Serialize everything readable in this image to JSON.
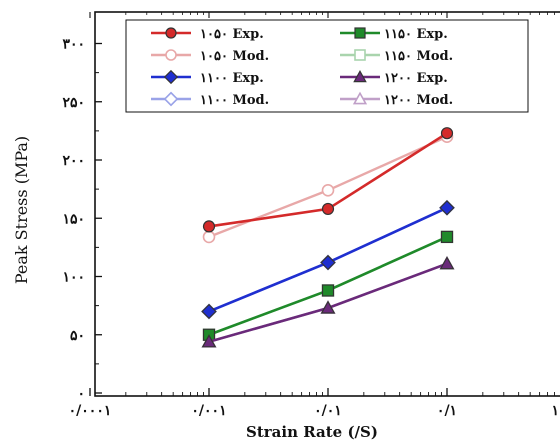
{
  "chart_data": {
    "type": "line",
    "xlabel": "Strain Rate (/S)",
    "ylabel": "Peak Stress (MPa)",
    "x_scale": "log",
    "x_ticks": [
      {
        "value": 0.0001,
        "label": "۰/۰۰۰۱"
      },
      {
        "value": 0.001,
        "label": "۰/۰۰۱"
      },
      {
        "value": 0.01,
        "label": "۰/۰۱"
      },
      {
        "value": 0.1,
        "label": "۰/۱"
      },
      {
        "value": 1,
        "label": "۱"
      }
    ],
    "y_ticks": [
      {
        "value": 0,
        "label": "۰"
      },
      {
        "value": 50,
        "label": "۵۰"
      },
      {
        "value": 100,
        "label": "۱۰۰"
      },
      {
        "value": 150,
        "label": "۱۵۰"
      },
      {
        "value": 200,
        "label": "۲۰۰"
      },
      {
        "value": 250,
        "label": "۲۵۰"
      },
      {
        "value": 300,
        "label": "۳۰۰"
      }
    ],
    "xlim": [
      0.0001,
      1
    ],
    "ylim": [
      0,
      325
    ],
    "x": [
      0.001,
      0.01,
      0.1
    ],
    "grid": false,
    "legend_position": "top",
    "series": [
      {
        "name": "۱۰۵۰ Exp.",
        "values": [
          143,
          158,
          223
        ],
        "color": "#d42a2a",
        "marker": "circle",
        "filled": true
      },
      {
        "name": "۱۰۵۰ Mod.",
        "values": [
          134,
          174,
          220
        ],
        "color": "#e8a8a8",
        "marker": "circle",
        "filled": false
      },
      {
        "name": "۱۱۰۰ Exp.",
        "values": [
          70,
          112,
          159
        ],
        "color": "#1f2fd0",
        "marker": "diamond",
        "filled": true
      },
      {
        "name": "۱۱۰۰ Mod.",
        "values": [
          70,
          112,
          159
        ],
        "color": "#9aa3e8",
        "marker": "diamond",
        "filled": false
      },
      {
        "name": "۱۱۵۰ Exp.",
        "values": [
          50,
          88,
          134
        ],
        "color": "#1f8a2a",
        "marker": "square",
        "filled": true
      },
      {
        "name": "۱۱۵۰ Mod.",
        "values": [
          50,
          88,
          134
        ],
        "color": "#a9d4ad",
        "marker": "square",
        "filled": false
      },
      {
        "name": "۱۲۰۰ Exp.",
        "values": [
          44,
          73,
          111
        ],
        "color": "#6a2a7a",
        "marker": "triangle",
        "filled": true
      },
      {
        "name": "۱۲۰۰ Mod.",
        "values": [
          44,
          73,
          111
        ],
        "color": "#c0a0c8",
        "marker": "triangle",
        "filled": false
      }
    ]
  }
}
